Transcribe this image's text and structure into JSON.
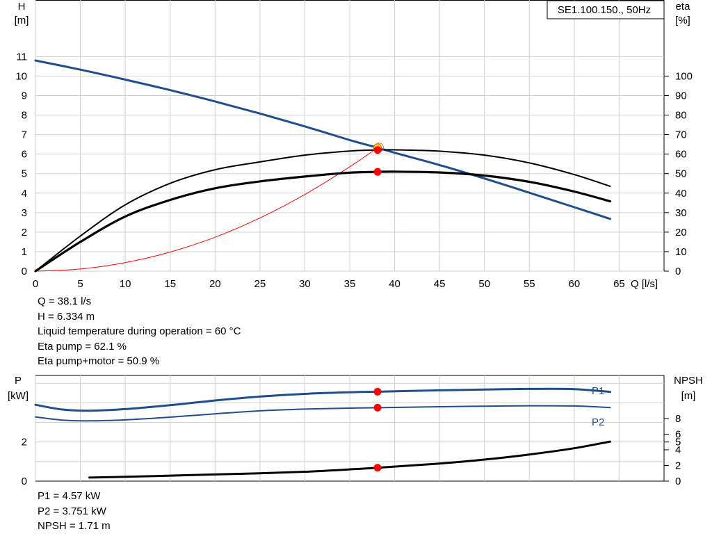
{
  "duty": {
    "q_line": "Q = 38.1 l/s",
    "h_line": "H = 6.334 m",
    "temp_line": "Liquid temperature during operation = 60 °C",
    "eta_pump_line": "Eta pump = 62.1 %",
    "eta_total_line": "Eta pump+motor = 50.9 %"
  },
  "power_readout": {
    "p1_line": "P1 = 4.57 kW",
    "p2_line": "P2 = 3.751 kW",
    "npsh_line": "NPSH = 1.71 m"
  },
  "chart_data": [
    {
      "type": "line",
      "legend_box": "SE1.100.150., 50Hz",
      "xlabel": "Q [l/s]",
      "ylabel_left": [
        "H",
        "[m]"
      ],
      "ylabel_right": [
        "eta",
        "[%]"
      ],
      "xlim": [
        0,
        70
      ],
      "ylim_left": [
        0,
        13.9
      ],
      "ylim_right": [
        0,
        139
      ],
      "x_ticks": [
        "0",
        "5",
        "10",
        "15",
        "20",
        "25",
        "30",
        "35",
        "40",
        "45",
        "50",
        "55",
        "60",
        "65"
      ],
      "y_ticks_left": [
        "0",
        "1",
        "2",
        "3",
        "4",
        "5",
        "6",
        "7",
        "8",
        "9",
        "10",
        "11"
      ],
      "y_ticks_right": [
        "0",
        "10",
        "20",
        "30",
        "40",
        "50",
        "60",
        "70",
        "80",
        "90",
        "100"
      ],
      "grid": true,
      "series": [
        {
          "name": "H",
          "axis": "left",
          "color": "#1f4e8c",
          "x": [
            0,
            5,
            10,
            15,
            20,
            25,
            30,
            35,
            38.1,
            40,
            45,
            50,
            55,
            60,
            64
          ],
          "y": [
            10.8,
            10.33,
            9.82,
            9.28,
            8.7,
            8.08,
            7.42,
            6.72,
            6.33,
            6.07,
            5.44,
            4.75,
            4.02,
            3.28,
            2.68
          ]
        },
        {
          "name": "Eta pump",
          "axis": "right",
          "color": "#000000",
          "x": [
            0,
            5,
            10,
            15,
            20,
            25,
            30,
            35,
            38.1,
            40,
            45,
            50,
            55,
            60,
            64
          ],
          "y": [
            0,
            18,
            34,
            45,
            52,
            56,
            59.5,
            61.6,
            62.1,
            62.2,
            61.5,
            59.5,
            55.5,
            49.5,
            43.5
          ]
        },
        {
          "name": "Eta pump+motor",
          "axis": "right",
          "color": "#000000",
          "x": [
            0,
            5,
            10,
            15,
            20,
            25,
            30,
            35,
            38.1,
            40,
            45,
            50,
            55,
            60,
            64
          ],
          "y": [
            0,
            15,
            28,
            36.5,
            42.5,
            46,
            48.5,
            50.5,
            50.9,
            51,
            50.6,
            49,
            45.8,
            40.8,
            35.8
          ]
        },
        {
          "name": "System curve",
          "axis": "left",
          "color": "#ff0000",
          "x": [
            0,
            5,
            10,
            15,
            20,
            25,
            30,
            35,
            38.1
          ],
          "y": [
            0,
            0.11,
            0.44,
            0.98,
            1.74,
            2.73,
            3.93,
            5.35,
            6.33
          ]
        }
      ],
      "operating_point": {
        "q": 38.1,
        "h": 6.334,
        "eta_pump": 62.1,
        "eta_total": 50.9
      }
    },
    {
      "type": "line",
      "ylabel_left": [
        "P",
        "[kW]"
      ],
      "ylabel_right": [
        "NPSH",
        "[m]"
      ],
      "xlim": [
        0,
        70
      ],
      "ylim_left": [
        0,
        5.4
      ],
      "ylim_right": [
        0,
        13.5
      ],
      "y_ticks_left": [
        "0",
        "2"
      ],
      "y_ticks_right": [
        "0",
        "2",
        "4",
        "5",
        "6",
        "8"
      ],
      "grid": true,
      "series": [
        {
          "name": "P1",
          "axis": "left",
          "color": "#1f4e8c",
          "x": [
            0,
            3,
            6,
            10,
            15,
            20,
            25,
            30,
            35,
            38.1,
            45,
            50,
            55,
            60,
            64
          ],
          "y": [
            3.9,
            3.66,
            3.6,
            3.68,
            3.88,
            4.12,
            4.32,
            4.46,
            4.54,
            4.57,
            4.64,
            4.68,
            4.71,
            4.7,
            4.56
          ]
        },
        {
          "name": "P2",
          "axis": "left",
          "color": "#1f4e8c",
          "x": [
            0,
            3,
            6,
            10,
            15,
            20,
            25,
            30,
            35,
            38.1,
            45,
            50,
            55,
            60,
            64
          ],
          "y": [
            3.28,
            3.12,
            3.08,
            3.13,
            3.27,
            3.44,
            3.59,
            3.68,
            3.73,
            3.75,
            3.8,
            3.83,
            3.85,
            3.84,
            3.76
          ]
        },
        {
          "name": "NPSH",
          "axis": "right",
          "color": "#000000",
          "x": [
            6,
            10,
            15,
            20,
            25,
            30,
            35,
            38.1,
            45,
            50,
            55,
            60,
            64
          ],
          "y": [
            0.45,
            0.55,
            0.7,
            0.85,
            1.0,
            1.2,
            1.5,
            1.71,
            2.25,
            2.75,
            3.4,
            4.2,
            5.05
          ]
        }
      ],
      "series_labels": [
        "P1",
        "P2"
      ],
      "operating_point": {
        "q": 38.1,
        "p1": 4.57,
        "p2": 3.751,
        "npsh": 1.71
      }
    }
  ]
}
